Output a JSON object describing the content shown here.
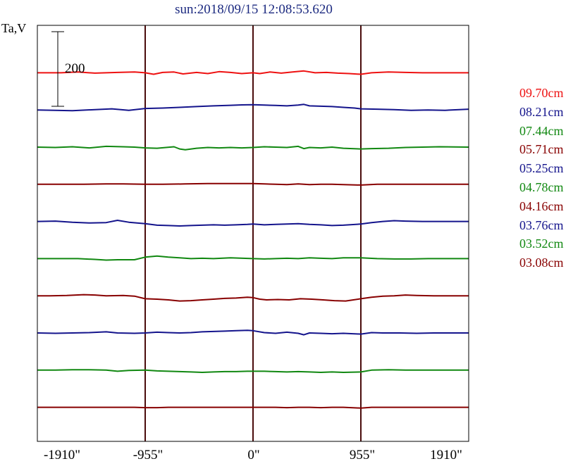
{
  "chart_data": {
    "type": "line",
    "title": "sun:2018/09/15 12:08:53.620",
    "ylabel": "Ta,V",
    "scale_bar_label": "200",
    "xlim": [
      -1910,
      1910
    ],
    "x_ticks": [
      "-1910\"",
      "-955\"",
      "0\"",
      "955\"",
      "1910\""
    ],
    "grid_x": [
      -955,
      0,
      955
    ],
    "series": [
      {
        "name": "09.70cm",
        "color": "#ee1111",
        "baseline": 1,
        "points": [
          [
            -1910,
            0
          ],
          [
            -1700,
            0
          ],
          [
            -1550,
            4
          ],
          [
            -1400,
            -2
          ],
          [
            -1200,
            2
          ],
          [
            -1050,
            4
          ],
          [
            -955,
            0
          ],
          [
            -880,
            -8
          ],
          [
            -800,
            2
          ],
          [
            -700,
            4
          ],
          [
            -620,
            -6
          ],
          [
            -500,
            2
          ],
          [
            -400,
            -4
          ],
          [
            -300,
            6
          ],
          [
            -200,
            2
          ],
          [
            -100,
            -4
          ],
          [
            0,
            0
          ],
          [
            60,
            -4
          ],
          [
            150,
            4
          ],
          [
            250,
            -2
          ],
          [
            350,
            4
          ],
          [
            450,
            10
          ],
          [
            550,
            0
          ],
          [
            650,
            2
          ],
          [
            750,
            -2
          ],
          [
            850,
            -4
          ],
          [
            955,
            -8
          ],
          [
            1050,
            0
          ],
          [
            1200,
            4
          ],
          [
            1350,
            2
          ],
          [
            1500,
            0
          ],
          [
            1650,
            0
          ],
          [
            1910,
            0
          ]
        ]
      },
      {
        "name": "08.21cm",
        "color": "#14148c",
        "baseline": 2,
        "points": [
          [
            -1910,
            0
          ],
          [
            -1750,
            -2
          ],
          [
            -1600,
            -4
          ],
          [
            -1400,
            2
          ],
          [
            -1250,
            6
          ],
          [
            -1100,
            -2
          ],
          [
            -955,
            8
          ],
          [
            -800,
            10
          ],
          [
            -650,
            14
          ],
          [
            -500,
            18
          ],
          [
            -350,
            22
          ],
          [
            -200,
            25
          ],
          [
            -100,
            27
          ],
          [
            0,
            28
          ],
          [
            100,
            26
          ],
          [
            200,
            24
          ],
          [
            300,
            22
          ],
          [
            400,
            26
          ],
          [
            450,
            30
          ],
          [
            500,
            22
          ],
          [
            600,
            20
          ],
          [
            700,
            18
          ],
          [
            800,
            14
          ],
          [
            900,
            10
          ],
          [
            955,
            6
          ],
          [
            1100,
            4
          ],
          [
            1250,
            2
          ],
          [
            1400,
            -2
          ],
          [
            1550,
            0
          ],
          [
            1700,
            -2
          ],
          [
            1910,
            4
          ]
        ]
      },
      {
        "name": "07.44cm",
        "color": "#118811",
        "baseline": 3,
        "points": [
          [
            -1910,
            0
          ],
          [
            -1750,
            -2
          ],
          [
            -1600,
            2
          ],
          [
            -1450,
            -4
          ],
          [
            -1300,
            4
          ],
          [
            -1150,
            2
          ],
          [
            -1050,
            0
          ],
          [
            -955,
            -4
          ],
          [
            -850,
            -6
          ],
          [
            -700,
            2
          ],
          [
            -650,
            -10
          ],
          [
            -600,
            -14
          ],
          [
            -500,
            -6
          ],
          [
            -400,
            -2
          ],
          [
            -300,
            -4
          ],
          [
            -200,
            -2
          ],
          [
            -100,
            -4
          ],
          [
            0,
            -2
          ],
          [
            100,
            2
          ],
          [
            200,
            0
          ],
          [
            300,
            -2
          ],
          [
            400,
            4
          ],
          [
            450,
            -8
          ],
          [
            500,
            -2
          ],
          [
            600,
            -4
          ],
          [
            700,
            0
          ],
          [
            800,
            -6
          ],
          [
            955,
            -10
          ],
          [
            1050,
            -8
          ],
          [
            1200,
            -6
          ],
          [
            1350,
            -2
          ],
          [
            1500,
            0
          ],
          [
            1650,
            2
          ],
          [
            1910,
            0
          ]
        ]
      },
      {
        "name": "05.71cm",
        "color": "#880000",
        "baseline": 4,
        "points": [
          [
            -1910,
            0
          ],
          [
            -1700,
            0
          ],
          [
            -1500,
            0
          ],
          [
            -1300,
            2
          ],
          [
            -1150,
            2
          ],
          [
            -955,
            0
          ],
          [
            -800,
            0
          ],
          [
            -600,
            2
          ],
          [
            -400,
            4
          ],
          [
            -200,
            4
          ],
          [
            0,
            4
          ],
          [
            100,
            2
          ],
          [
            200,
            0
          ],
          [
            300,
            -2
          ],
          [
            400,
            2
          ],
          [
            500,
            -2
          ],
          [
            600,
            0
          ],
          [
            700,
            0
          ],
          [
            800,
            -2
          ],
          [
            955,
            -4
          ],
          [
            1100,
            0
          ],
          [
            1300,
            0
          ],
          [
            1500,
            0
          ],
          [
            1910,
            0
          ]
        ]
      },
      {
        "name": "05.25cm",
        "color": "#14148c",
        "baseline": 5,
        "points": [
          [
            -1910,
            0
          ],
          [
            -1750,
            2
          ],
          [
            -1600,
            -4
          ],
          [
            -1450,
            -8
          ],
          [
            -1300,
            -6
          ],
          [
            -1200,
            6
          ],
          [
            -1100,
            -4
          ],
          [
            -955,
            -12
          ],
          [
            -850,
            -20
          ],
          [
            -750,
            -22
          ],
          [
            -650,
            -24
          ],
          [
            -550,
            -22
          ],
          [
            -450,
            -20
          ],
          [
            -350,
            -18
          ],
          [
            -250,
            -20
          ],
          [
            -150,
            -18
          ],
          [
            -50,
            -16
          ],
          [
            0,
            -14
          ],
          [
            100,
            -18
          ],
          [
            200,
            -16
          ],
          [
            300,
            -14
          ],
          [
            400,
            -12
          ],
          [
            500,
            -16
          ],
          [
            600,
            -18
          ],
          [
            700,
            -22
          ],
          [
            800,
            -20
          ],
          [
            955,
            -14
          ],
          [
            1050,
            -6
          ],
          [
            1150,
            0
          ],
          [
            1250,
            4
          ],
          [
            1350,
            2
          ],
          [
            1500,
            0
          ],
          [
            1650,
            0
          ],
          [
            1910,
            0
          ]
        ]
      },
      {
        "name": "04.78cm",
        "color": "#118811",
        "baseline": 6,
        "points": [
          [
            -1910,
            0
          ],
          [
            -1700,
            0
          ],
          [
            -1550,
            0
          ],
          [
            -1400,
            -4
          ],
          [
            -1300,
            -8
          ],
          [
            -1200,
            -6
          ],
          [
            -1050,
            -6
          ],
          [
            -955,
            8
          ],
          [
            -850,
            14
          ],
          [
            -750,
            8
          ],
          [
            -650,
            4
          ],
          [
            -550,
            0
          ],
          [
            -450,
            2
          ],
          [
            -350,
            0
          ],
          [
            -200,
            4
          ],
          [
            0,
            0
          ],
          [
            100,
            -2
          ],
          [
            200,
            0
          ],
          [
            300,
            2
          ],
          [
            400,
            0
          ],
          [
            500,
            4
          ],
          [
            600,
            2
          ],
          [
            700,
            0
          ],
          [
            800,
            4
          ],
          [
            955,
            4
          ],
          [
            1100,
            0
          ],
          [
            1250,
            -2
          ],
          [
            1400,
            -2
          ],
          [
            1550,
            0
          ],
          [
            1910,
            0
          ]
        ]
      },
      {
        "name": "04.16cm",
        "color": "#880000",
        "baseline": 7,
        "points": [
          [
            -1910,
            0
          ],
          [
            -1800,
            0
          ],
          [
            -1650,
            2
          ],
          [
            -1500,
            6
          ],
          [
            -1400,
            4
          ],
          [
            -1300,
            0
          ],
          [
            -1150,
            2
          ],
          [
            -1050,
            -2
          ],
          [
            -955,
            -16
          ],
          [
            -850,
            -18
          ],
          [
            -750,
            -22
          ],
          [
            -650,
            -28
          ],
          [
            -550,
            -26
          ],
          [
            -450,
            -22
          ],
          [
            -350,
            -18
          ],
          [
            -250,
            -14
          ],
          [
            -150,
            -12
          ],
          [
            -50,
            -8
          ],
          [
            0,
            -10
          ],
          [
            60,
            -18
          ],
          [
            120,
            -22
          ],
          [
            220,
            -20
          ],
          [
            320,
            -22
          ],
          [
            420,
            -16
          ],
          [
            520,
            -18
          ],
          [
            620,
            -22
          ],
          [
            720,
            -26
          ],
          [
            820,
            -28
          ],
          [
            955,
            -16
          ],
          [
            1050,
            -8
          ],
          [
            1150,
            -2
          ],
          [
            1250,
            0
          ],
          [
            1350,
            4
          ],
          [
            1450,
            2
          ],
          [
            1600,
            0
          ],
          [
            1910,
            0
          ]
        ]
      },
      {
        "name": "03.76cm",
        "color": "#14148c",
        "baseline": 8,
        "points": [
          [
            -1910,
            0
          ],
          [
            -1750,
            -2
          ],
          [
            -1600,
            0
          ],
          [
            -1450,
            2
          ],
          [
            -1300,
            6
          ],
          [
            -1200,
            0
          ],
          [
            -1050,
            -2
          ],
          [
            -955,
            0
          ],
          [
            -850,
            4
          ],
          [
            -750,
            2
          ],
          [
            -650,
            0
          ],
          [
            -550,
            2
          ],
          [
            -450,
            6
          ],
          [
            -350,
            8
          ],
          [
            -250,
            10
          ],
          [
            -150,
            12
          ],
          [
            -50,
            14
          ],
          [
            0,
            12
          ],
          [
            100,
            2
          ],
          [
            200,
            -2
          ],
          [
            300,
            4
          ],
          [
            400,
            -2
          ],
          [
            450,
            -10
          ],
          [
            500,
            0
          ],
          [
            600,
            -2
          ],
          [
            700,
            -4
          ],
          [
            800,
            -2
          ],
          [
            955,
            -6
          ],
          [
            1050,
            2
          ],
          [
            1150,
            0
          ],
          [
            1300,
            0
          ],
          [
            1450,
            -2
          ],
          [
            1600,
            0
          ],
          [
            1910,
            0
          ]
        ]
      },
      {
        "name": "03.52cm",
        "color": "#118811",
        "baseline": 9,
        "points": [
          [
            -1910,
            0
          ],
          [
            -1750,
            0
          ],
          [
            -1600,
            2
          ],
          [
            -1450,
            2
          ],
          [
            -1300,
            0
          ],
          [
            -1200,
            -6
          ],
          [
            -1100,
            -2
          ],
          [
            -955,
            0
          ],
          [
            -850,
            -4
          ],
          [
            -750,
            -6
          ],
          [
            -650,
            -8
          ],
          [
            -550,
            -10
          ],
          [
            -450,
            -12
          ],
          [
            -350,
            -10
          ],
          [
            -250,
            -8
          ],
          [
            -150,
            -8
          ],
          [
            -50,
            -6
          ],
          [
            0,
            -6
          ],
          [
            100,
            -6
          ],
          [
            200,
            -8
          ],
          [
            300,
            -10
          ],
          [
            400,
            -8
          ],
          [
            500,
            -10
          ],
          [
            600,
            -12
          ],
          [
            700,
            -10
          ],
          [
            800,
            -12
          ],
          [
            955,
            -10
          ],
          [
            1050,
            0
          ],
          [
            1200,
            2
          ],
          [
            1350,
            0
          ],
          [
            1500,
            0
          ],
          [
            1910,
            0
          ]
        ]
      },
      {
        "name": "03.08cm",
        "color": "#880000",
        "baseline": 10,
        "points": [
          [
            -1910,
            0
          ],
          [
            -1750,
            0
          ],
          [
            -1600,
            0
          ],
          [
            -1450,
            0
          ],
          [
            -1300,
            0
          ],
          [
            -1150,
            0
          ],
          [
            -1050,
            0
          ],
          [
            -955,
            -2
          ],
          [
            -850,
            -2
          ],
          [
            -750,
            0
          ],
          [
            -650,
            0
          ],
          [
            -550,
            0
          ],
          [
            -450,
            0
          ],
          [
            -350,
            0
          ],
          [
            -250,
            0
          ],
          [
            -150,
            0
          ],
          [
            0,
            0
          ],
          [
            100,
            0
          ],
          [
            200,
            0
          ],
          [
            300,
            -2
          ],
          [
            400,
            0
          ],
          [
            500,
            0
          ],
          [
            600,
            -2
          ],
          [
            700,
            0
          ],
          [
            800,
            0
          ],
          [
            955,
            -4
          ],
          [
            1050,
            0
          ],
          [
            1200,
            0
          ],
          [
            1400,
            0
          ],
          [
            1600,
            0
          ],
          [
            1910,
            0
          ]
        ]
      }
    ]
  }
}
